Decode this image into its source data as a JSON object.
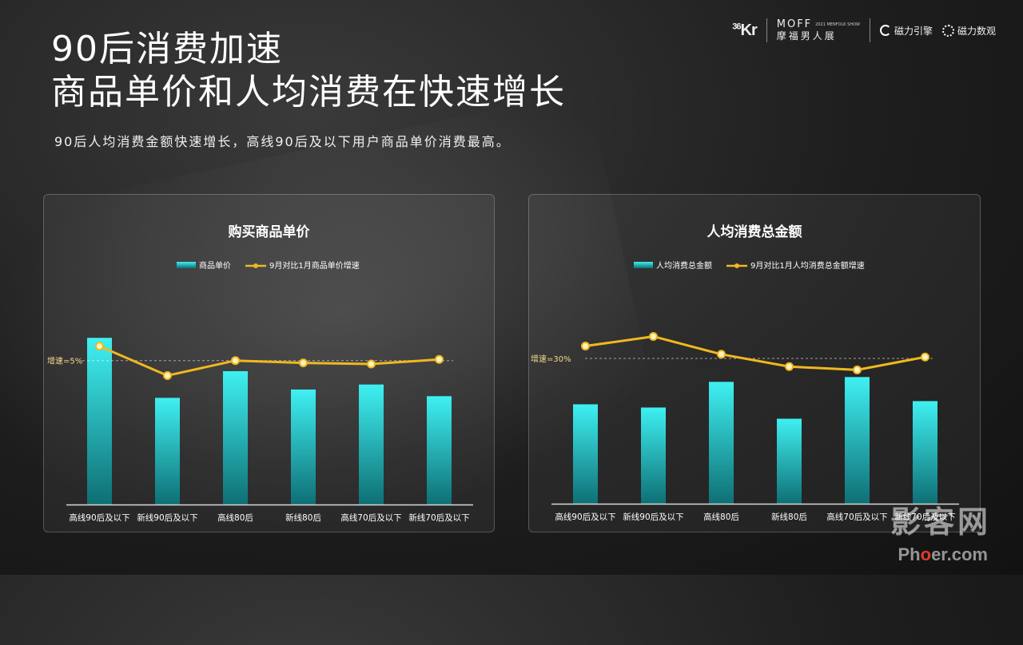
{
  "header": {
    "title_line1": "90后消费加速",
    "title_line2": "商品单价和人均消费在快速增长",
    "subtitle": "90后人均消费金额快速增长，高线90后及以下用户商品单价消费最高。"
  },
  "logos": {
    "kr": "36",
    "kr_suffix": "Kr",
    "moff": "MOFF",
    "moff_small": "2021 MENFOLK SHOW",
    "moff_cn": "摩福男人展",
    "brand1": "磁力引擎",
    "brand2": "磁力数观"
  },
  "watermark": {
    "line1": "影客网",
    "line2_a": "Ph",
    "line2_o": "o",
    "line2_b": "er.com"
  },
  "colors": {
    "bar_top": "#3ff0f2",
    "bar_bottom": "#0e6f74",
    "line": "#f0b81e",
    "marker_fill": "#fff3c4"
  },
  "chart_data": [
    {
      "type": "bar",
      "title": "购买商品单价",
      "categories": [
        "高线90后及以下",
        "新线90后及以下",
        "高线80后",
        "新线80后",
        "高线70后及以下",
        "新线70后及以下"
      ],
      "series": [
        {
          "name": "商品单价",
          "type": "bar",
          "values": [
            100,
            64,
            80,
            69,
            72,
            65
          ]
        },
        {
          "name": "9月对比1月商品单价增速",
          "type": "line",
          "values": [
            7.5,
            2.4,
            5.0,
            4.6,
            4.4,
            5.2
          ]
        }
      ],
      "reference_line": {
        "label": "增速=5%",
        "value": 5
      },
      "bar_ylim": [
        0,
        114
      ],
      "line_ylim": [
        -20,
        13
      ],
      "legend": "top-center",
      "grid": false
    },
    {
      "type": "bar",
      "title": "人均消费总金额",
      "categories": [
        "高线90后及以下",
        "新线90后及以下",
        "高线80后",
        "新线80后",
        "高线70后及以下",
        "新线70后及以下"
      ],
      "series": [
        {
          "name": "人均消费总金额",
          "type": "bar",
          "values": [
            62,
            60,
            76,
            53,
            79,
            64
          ]
        },
        {
          "name": "9月对比1月人均消费总金额增速",
          "type": "line",
          "values": [
            34.5,
            38,
            31.5,
            27,
            25.8,
            30.5
          ]
        }
      ],
      "reference_line": {
        "label": "增速=30%",
        "value": 30
      },
      "bar_ylim": [
        0,
        118
      ],
      "line_ylim": [
        -23,
        46
      ],
      "legend": "top-center",
      "grid": false
    }
  ]
}
